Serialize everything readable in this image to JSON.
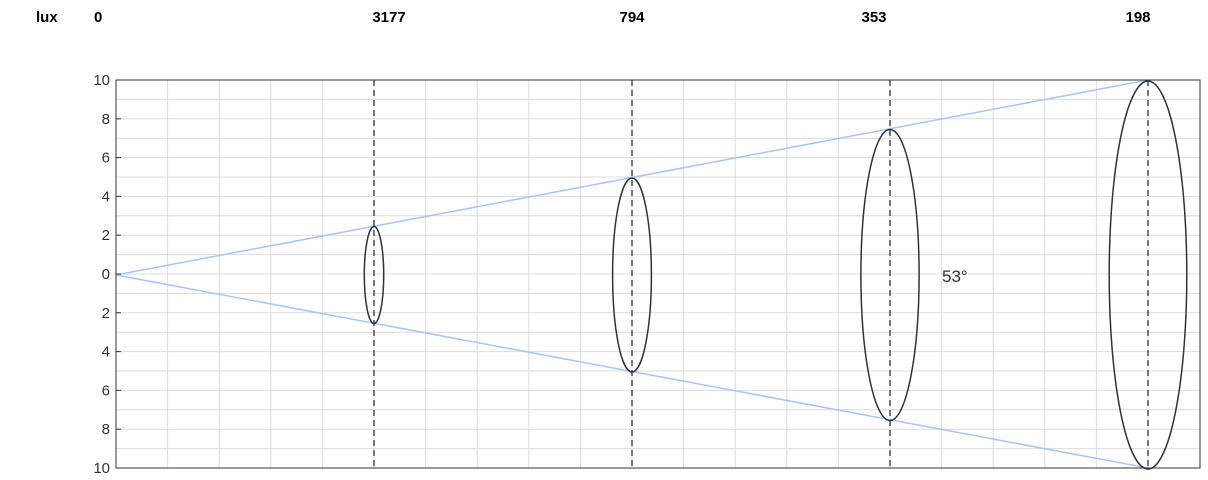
{
  "lux": {
    "label": "lux",
    "values": [
      "0",
      "3177",
      "794",
      "353",
      "198"
    ]
  },
  "y_axis": {
    "ticks": [
      "10",
      "8",
      "6",
      "4",
      "2",
      "0",
      "2",
      "4",
      "6",
      "8",
      "10"
    ],
    "range": [
      -10,
      10
    ]
  },
  "beam": {
    "angle_label": "53°",
    "half_width_at_max_distance": 10,
    "ellipse_half_heights": [
      2.5,
      5,
      7.5,
      10
    ]
  },
  "colors": {
    "beam_line": "#a9c4f5",
    "ellipse": "#333333",
    "grid": "#dcdcdc",
    "axis": "#333333"
  }
}
